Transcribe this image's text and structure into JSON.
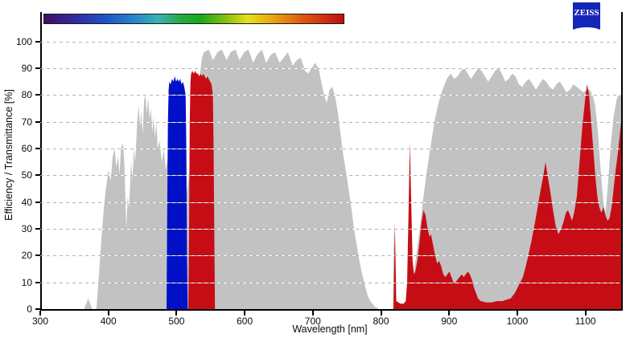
{
  "logo": {
    "text": "ZEISS",
    "bg": "#1326b8"
  },
  "colors": {
    "gray_series": "#c2c2c2",
    "blue_series": "#0011c8",
    "red_series": "#c60d15",
    "axis": "#000000",
    "grid": "#b2b2b2"
  },
  "spectrum_bar": {
    "nm_start": 305,
    "nm_end": 744,
    "stops": [
      [
        "#3d1166",
        0
      ],
      [
        "#33289e",
        10
      ],
      [
        "#1e50c8",
        20
      ],
      [
        "#2884cc",
        30
      ],
      [
        "#38b4b4",
        38
      ],
      [
        "#2aa83c",
        46
      ],
      [
        "#18a818",
        52
      ],
      [
        "#88c010",
        61
      ],
      [
        "#e8e018",
        68
      ],
      [
        "#e8a012",
        77
      ],
      [
        "#dc5410",
        87
      ],
      [
        "#c00e0e",
        100
      ]
    ]
  },
  "chart_data": {
    "type": "area",
    "title": "",
    "xlabel": "Wavelength [nm]",
    "ylabel": "Efficiency / Transmittance [%]",
    "xlim": [
      300,
      1150
    ],
    "ylim": [
      0,
      111
    ],
    "grid": "horizontal-dashed",
    "legend_position": "none",
    "xticks": [
      300,
      400,
      500,
      600,
      700,
      800,
      900,
      1000,
      1100
    ],
    "yticks": [
      0,
      10,
      20,
      30,
      40,
      50,
      60,
      70,
      80,
      90,
      100
    ],
    "series": [
      {
        "name": "transmittance-gray",
        "color": "#c2c2c2",
        "points": [
          [
            300,
            0
          ],
          [
            362,
            0
          ],
          [
            365,
            2
          ],
          [
            368,
            4
          ],
          [
            371,
            2
          ],
          [
            374,
            0
          ],
          [
            380,
            0
          ],
          [
            383,
            10
          ],
          [
            387,
            25
          ],
          [
            391,
            38
          ],
          [
            394,
            45
          ],
          [
            398,
            52
          ],
          [
            401,
            48
          ],
          [
            404,
            57
          ],
          [
            407,
            60
          ],
          [
            409,
            53
          ],
          [
            412,
            57
          ],
          [
            414,
            50
          ],
          [
            416,
            60
          ],
          [
            419,
            62
          ],
          [
            421,
            55
          ],
          [
            424,
            30
          ],
          [
            426,
            42
          ],
          [
            428,
            38
          ],
          [
            431,
            55
          ],
          [
            433,
            48
          ],
          [
            435,
            60
          ],
          [
            437,
            55
          ],
          [
            440,
            70
          ],
          [
            442,
            76
          ],
          [
            444,
            68
          ],
          [
            446,
            74
          ],
          [
            448,
            65
          ],
          [
            450,
            78
          ],
          [
            452,
            80
          ],
          [
            454,
            73
          ],
          [
            456,
            79
          ],
          [
            458,
            71
          ],
          [
            460,
            75
          ],
          [
            462,
            66
          ],
          [
            464,
            72
          ],
          [
            466,
            64
          ],
          [
            468,
            70
          ],
          [
            470,
            60
          ],
          [
            473,
            63
          ],
          [
            476,
            55
          ],
          [
            479,
            60
          ],
          [
            482,
            52
          ],
          [
            485,
            57
          ],
          [
            488,
            48
          ],
          [
            492,
            53
          ],
          [
            496,
            45
          ],
          [
            500,
            50
          ],
          [
            504,
            43
          ],
          [
            508,
            48
          ],
          [
            512,
            42
          ],
          [
            516,
            50
          ],
          [
            520,
            60
          ],
          [
            524,
            70
          ],
          [
            528,
            80
          ],
          [
            532,
            88
          ],
          [
            535,
            94
          ],
          [
            538,
            96
          ],
          [
            545,
            97
          ],
          [
            551,
            93
          ],
          [
            558,
            96
          ],
          [
            564,
            97
          ],
          [
            571,
            93
          ],
          [
            577,
            96
          ],
          [
            584,
            97
          ],
          [
            590,
            93
          ],
          [
            597,
            96
          ],
          [
            603,
            97
          ],
          [
            610,
            92
          ],
          [
            616,
            95
          ],
          [
            623,
            97
          ],
          [
            629,
            92
          ],
          [
            636,
            95
          ],
          [
            642,
            96
          ],
          [
            649,
            92
          ],
          [
            655,
            94
          ],
          [
            661,
            96
          ],
          [
            668,
            91
          ],
          [
            674,
            93
          ],
          [
            680,
            94
          ],
          [
            686,
            89
          ],
          [
            691,
            88
          ],
          [
            696,
            90
          ],
          [
            701,
            92
          ],
          [
            706,
            90
          ],
          [
            710,
            85
          ],
          [
            714,
            80
          ],
          [
            718,
            77
          ],
          [
            722,
            82
          ],
          [
            726,
            83
          ],
          [
            730,
            80
          ],
          [
            734,
            74
          ],
          [
            738,
            66
          ],
          [
            742,
            58
          ],
          [
            746,
            52
          ],
          [
            750,
            45
          ],
          [
            754,
            38
          ],
          [
            758,
            30
          ],
          [
            762,
            24
          ],
          [
            766,
            18
          ],
          [
            770,
            13
          ],
          [
            774,
            9
          ],
          [
            778,
            5
          ],
          [
            782,
            3
          ],
          [
            788,
            1
          ],
          [
            795,
            0
          ],
          [
            815,
            0
          ],
          [
            817,
            33
          ],
          [
            819,
            0
          ],
          [
            833,
            0
          ],
          [
            838,
            5
          ],
          [
            845,
            12
          ],
          [
            852,
            25
          ],
          [
            858,
            38
          ],
          [
            864,
            50
          ],
          [
            870,
            60
          ],
          [
            876,
            70
          ],
          [
            882,
            77
          ],
          [
            888,
            82
          ],
          [
            894,
            86
          ],
          [
            900,
            88
          ],
          [
            905,
            86
          ],
          [
            910,
            87
          ],
          [
            915,
            89
          ],
          [
            920,
            90
          ],
          [
            925,
            88
          ],
          [
            930,
            86
          ],
          [
            935,
            88
          ],
          [
            940,
            90
          ],
          [
            945,
            89
          ],
          [
            950,
            87
          ],
          [
            955,
            85
          ],
          [
            960,
            87
          ],
          [
            965,
            89
          ],
          [
            970,
            90
          ],
          [
            975,
            88
          ],
          [
            980,
            85
          ],
          [
            985,
            86
          ],
          [
            990,
            88
          ],
          [
            995,
            87
          ],
          [
            1000,
            84
          ],
          [
            1005,
            83
          ],
          [
            1010,
            85
          ],
          [
            1015,
            86
          ],
          [
            1020,
            84
          ],
          [
            1025,
            82
          ],
          [
            1030,
            84
          ],
          [
            1035,
            86
          ],
          [
            1040,
            85
          ],
          [
            1045,
            83
          ],
          [
            1050,
            82
          ],
          [
            1055,
            84
          ],
          [
            1060,
            85
          ],
          [
            1065,
            83
          ],
          [
            1070,
            81
          ],
          [
            1075,
            82
          ],
          [
            1080,
            84
          ],
          [
            1085,
            83
          ],
          [
            1090,
            82
          ],
          [
            1095,
            81
          ],
          [
            1100,
            82
          ],
          [
            1104,
            82
          ],
          [
            1108,
            80
          ],
          [
            1112,
            76
          ],
          [
            1116,
            66
          ],
          [
            1120,
            52
          ],
          [
            1124,
            40
          ],
          [
            1127,
            36
          ],
          [
            1131,
            48
          ],
          [
            1135,
            62
          ],
          [
            1139,
            72
          ],
          [
            1143,
            78
          ],
          [
            1146,
            80
          ],
          [
            1150,
            80
          ]
        ]
      },
      {
        "name": "excitation-blue",
        "color": "#0011c8",
        "points": [
          [
            483,
            0
          ],
          [
            484,
            40
          ],
          [
            485,
            70
          ],
          [
            486,
            82
          ],
          [
            487,
            85
          ],
          [
            489,
            84
          ],
          [
            491,
            86
          ],
          [
            493,
            85
          ],
          [
            495,
            87
          ],
          [
            497,
            85
          ],
          [
            499,
            86
          ],
          [
            501,
            85
          ],
          [
            503,
            86
          ],
          [
            505,
            84
          ],
          [
            507,
            85
          ],
          [
            509,
            83
          ],
          [
            511,
            80
          ],
          [
            512,
            60
          ],
          [
            513,
            20
          ],
          [
            514,
            0
          ]
        ]
      },
      {
        "name": "emission-red",
        "color": "#c60d15",
        "points": [
          [
            515,
            0
          ],
          [
            516,
            30
          ],
          [
            517,
            70
          ],
          [
            518,
            85
          ],
          [
            519,
            88
          ],
          [
            521,
            89
          ],
          [
            523,
            88
          ],
          [
            525,
            89
          ],
          [
            527,
            88
          ],
          [
            529,
            88
          ],
          [
            531,
            87
          ],
          [
            533,
            88
          ],
          [
            535,
            87
          ],
          [
            537,
            88
          ],
          [
            539,
            87
          ],
          [
            541,
            86
          ],
          [
            543,
            87
          ],
          [
            545,
            86
          ],
          [
            547,
            85
          ],
          [
            549,
            84
          ],
          [
            551,
            80
          ],
          [
            552,
            60
          ],
          [
            553,
            30
          ],
          [
            554,
            0
          ],
          [
            556,
            0
          ],
          [
            814,
            0
          ],
          [
            816,
            0
          ],
          [
            818,
            32
          ],
          [
            820,
            3
          ],
          [
            826,
            2
          ],
          [
            831,
            2
          ],
          [
            834,
            3
          ],
          [
            836,
            10
          ],
          [
            838,
            35
          ],
          [
            840,
            62
          ],
          [
            842,
            40
          ],
          [
            844,
            18
          ],
          [
            846,
            13
          ],
          [
            848,
            14
          ],
          [
            851,
            18
          ],
          [
            854,
            25
          ],
          [
            857,
            32
          ],
          [
            860,
            37
          ],
          [
            863,
            35
          ],
          [
            866,
            30
          ],
          [
            869,
            27
          ],
          [
            871,
            28
          ],
          [
            874,
            24
          ],
          [
            877,
            20
          ],
          [
            880,
            17
          ],
          [
            883,
            18
          ],
          [
            886,
            16
          ],
          [
            889,
            13
          ],
          [
            892,
            12
          ],
          [
            895,
            13
          ],
          [
            898,
            14
          ],
          [
            901,
            12
          ],
          [
            904,
            10
          ],
          [
            907,
            10
          ],
          [
            910,
            11
          ],
          [
            913,
            12
          ],
          [
            916,
            13
          ],
          [
            919,
            12
          ],
          [
            922,
            13
          ],
          [
            925,
            14
          ],
          [
            928,
            13
          ],
          [
            931,
            11
          ],
          [
            934,
            8
          ],
          [
            937,
            6
          ],
          [
            940,
            4
          ],
          [
            944,
            3
          ],
          [
            952,
            2.5
          ],
          [
            960,
            2.5
          ],
          [
            968,
            3
          ],
          [
            976,
            3
          ],
          [
            982,
            3.5
          ],
          [
            988,
            4
          ],
          [
            994,
            6
          ],
          [
            1000,
            9
          ],
          [
            1006,
            12
          ],
          [
            1012,
            18
          ],
          [
            1018,
            25
          ],
          [
            1024,
            33
          ],
          [
            1030,
            42
          ],
          [
            1036,
            50
          ],
          [
            1039,
            55
          ],
          [
            1042,
            50
          ],
          [
            1046,
            44
          ],
          [
            1050,
            37
          ],
          [
            1054,
            31
          ],
          [
            1058,
            28
          ],
          [
            1062,
            30
          ],
          [
            1066,
            33
          ],
          [
            1069,
            36
          ],
          [
            1072,
            37
          ],
          [
            1075,
            35
          ],
          [
            1078,
            33
          ],
          [
            1081,
            36
          ],
          [
            1085,
            42
          ],
          [
            1089,
            55
          ],
          [
            1093,
            68
          ],
          [
            1097,
            78
          ],
          [
            1100,
            84
          ],
          [
            1103,
            80
          ],
          [
            1106,
            70
          ],
          [
            1109,
            60
          ],
          [
            1112,
            50
          ],
          [
            1115,
            42
          ],
          [
            1118,
            38
          ],
          [
            1121,
            36
          ],
          [
            1124,
            38
          ],
          [
            1127,
            35
          ],
          [
            1130,
            33
          ],
          [
            1133,
            34
          ],
          [
            1136,
            38
          ],
          [
            1139,
            45
          ],
          [
            1142,
            52
          ],
          [
            1145,
            58
          ],
          [
            1148,
            65
          ],
          [
            1150,
            70
          ]
        ]
      }
    ]
  }
}
